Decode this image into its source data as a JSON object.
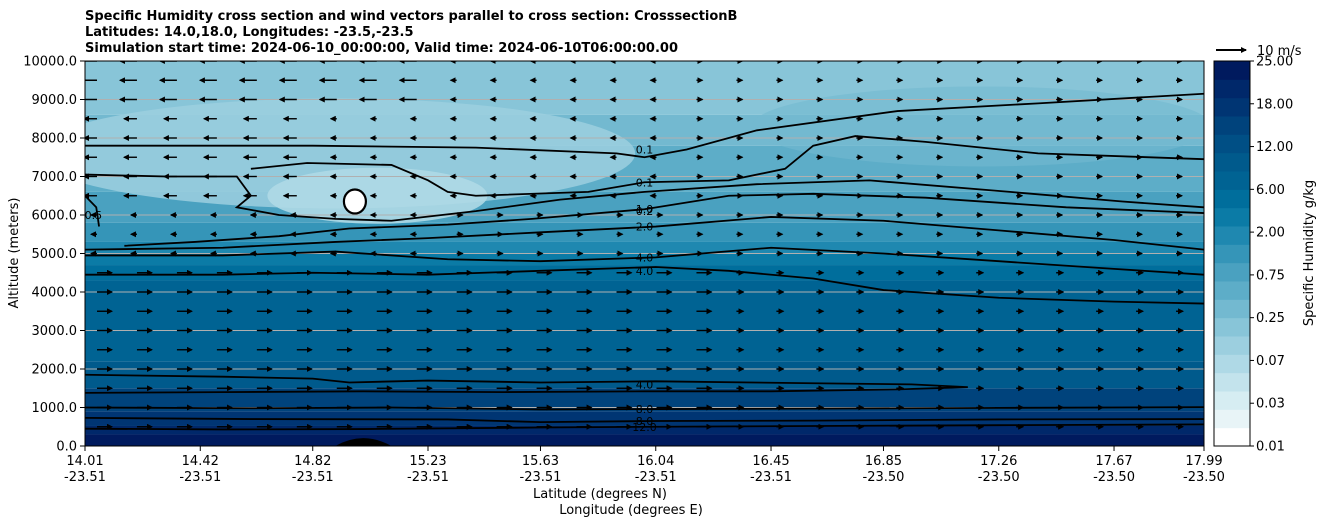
{
  "chart_data": {
    "type": "contour",
    "title_lines": [
      "Specific Humidity cross section and wind vectors parallel to cross section: CrosssectionB",
      "Latitudes: 14.0,18.0, Longitudes: -23.5,-23.5",
      "Simulation start time: 2024-06-10_00:00:00, Valid time: 2024-06-10T06:00:00.00"
    ],
    "ylabel": "Altitude (meters)",
    "xlabel_lines": [
      "Latitude (degrees N)",
      "Longitude (degrees E)"
    ],
    "ylim": [
      0,
      10000
    ],
    "y_ticks": [
      "0.0",
      "1000.0",
      "2000.0",
      "3000.0",
      "4000.0",
      "5000.0",
      "6000.0",
      "7000.0",
      "8000.0",
      "9000.0",
      "10000.0"
    ],
    "x_ticks": [
      {
        "lat": "14.01",
        "lon": "-23.51"
      },
      {
        "lat": "14.42",
        "lon": "-23.51"
      },
      {
        "lat": "14.82",
        "lon": "-23.51"
      },
      {
        "lat": "15.23",
        "lon": "-23.51"
      },
      {
        "lat": "15.63",
        "lon": "-23.51"
      },
      {
        "lat": "16.04",
        "lon": "-23.51"
      },
      {
        "lat": "16.45",
        "lon": "-23.51"
      },
      {
        "lat": "16.85",
        "lon": "-23.50"
      },
      {
        "lat": "17.26",
        "lon": "-23.50"
      },
      {
        "lat": "17.67",
        "lon": "-23.50"
      },
      {
        "lat": "17.99",
        "lon": "-23.50"
      }
    ],
    "colorbar": {
      "label": "Specific Humidity g/kg",
      "tick_labels": [
        "0.01",
        "0.03",
        "0.07",
        "0.25",
        "0.75",
        "2.00",
        "6.00",
        "12.00",
        "18.00",
        "25.00"
      ],
      "colors": [
        "#ffffff",
        "#e8f4f7",
        "#d6edf2",
        "#c3e3ec",
        "#afd9e6",
        "#9ccfdf",
        "#88c5d8",
        "#73b9d0",
        "#5dadc8",
        "#4aa1c0",
        "#3595b8",
        "#1f88b0",
        "#0b7ba6",
        "#006e9c",
        "#006393",
        "#005a8c",
        "#004f85",
        "#00437c",
        "#003573",
        "#00286a",
        "#001a5e"
      ]
    },
    "wind_reference": "10 m/s",
    "contour_lines": [
      {
        "label": "0.1",
        "points": [
          [
            14.01,
            7800
          ],
          [
            14.82,
            7800
          ],
          [
            15.4,
            7750
          ],
          [
            15.9,
            7600
          ],
          [
            16.0,
            7500
          ],
          [
            16.15,
            7700
          ],
          [
            16.4,
            8200
          ],
          [
            16.9,
            8700
          ],
          [
            17.4,
            8900
          ],
          [
            17.99,
            9150
          ]
        ]
      },
      {
        "label": "0.1",
        "points": [
          [
            14.6,
            7200
          ],
          [
            14.8,
            7350
          ],
          [
            15.1,
            7300
          ],
          [
            15.23,
            6900
          ],
          [
            15.3,
            6600
          ],
          [
            15.4,
            6500
          ],
          [
            15.8,
            6600
          ],
          [
            16.0,
            6850
          ],
          [
            16.3,
            6900
          ],
          [
            16.5,
            7200
          ],
          [
            16.6,
            7800
          ],
          [
            16.75,
            8050
          ],
          [
            17.0,
            7900
          ],
          [
            17.4,
            7600
          ],
          [
            17.99,
            7450
          ]
        ]
      },
      {
        "label": "0.2",
        "points": [
          [
            14.01,
            7050
          ],
          [
            14.3,
            7000
          ],
          [
            14.55,
            7000
          ],
          [
            14.6,
            6500
          ],
          [
            14.55,
            6200
          ],
          [
            14.7,
            6000
          ],
          [
            14.9,
            5900
          ],
          [
            15.1,
            5850
          ],
          [
            15.4,
            6100
          ],
          [
            15.7,
            6400
          ],
          [
            16.0,
            6600
          ],
          [
            16.4,
            6800
          ],
          [
            16.8,
            6900
          ],
          [
            17.3,
            6600
          ],
          [
            17.7,
            6350
          ],
          [
            17.99,
            6200
          ]
        ]
      },
      {
        "label": "0.5",
        "points": [
          [
            14.01,
            6500
          ],
          [
            14.05,
            6200
          ],
          [
            14.06,
            5700
          ]
        ]
      },
      {
        "label": "1.0",
        "points": [
          [
            14.15,
            5200
          ],
          [
            14.4,
            5300
          ],
          [
            14.7,
            5450
          ],
          [
            14.95,
            5650
          ],
          [
            15.3,
            5750
          ],
          [
            15.6,
            5900
          ],
          [
            16.0,
            6150
          ],
          [
            16.3,
            6500
          ],
          [
            16.6,
            6550
          ],
          [
            17.0,
            6450
          ],
          [
            17.5,
            6200
          ],
          [
            17.99,
            6050
          ]
        ]
      },
      {
        "label": "2.0",
        "points": [
          [
            14.01,
            5100
          ],
          [
            14.5,
            5150
          ],
          [
            14.9,
            5300
          ],
          [
            15.23,
            5400
          ],
          [
            15.63,
            5550
          ],
          [
            16.04,
            5700
          ],
          [
            16.45,
            5950
          ],
          [
            16.85,
            5850
          ],
          [
            17.26,
            5600
          ],
          [
            17.67,
            5350
          ],
          [
            17.99,
            5100
          ]
        ]
      },
      {
        "label": "4.0",
        "points": [
          [
            14.01,
            4950
          ],
          [
            14.5,
            4950
          ],
          [
            14.9,
            5050
          ],
          [
            15.3,
            4850
          ],
          [
            15.63,
            4800
          ],
          [
            16.04,
            4900
          ],
          [
            16.45,
            5150
          ],
          [
            16.85,
            5000
          ],
          [
            17.26,
            4800
          ],
          [
            17.67,
            4600
          ],
          [
            17.99,
            4450
          ]
        ]
      },
      {
        "label": "4.0",
        "points": [
          [
            14.01,
            4450
          ],
          [
            14.5,
            4450
          ],
          [
            14.82,
            4500
          ],
          [
            15.23,
            4450
          ],
          [
            15.63,
            4550
          ],
          [
            16.04,
            4650
          ],
          [
            16.3,
            4550
          ],
          [
            16.6,
            4350
          ],
          [
            16.85,
            4050
          ],
          [
            17.26,
            3850
          ],
          [
            17.67,
            3750
          ],
          [
            17.99,
            3700
          ]
        ]
      },
      {
        "label": "4.0",
        "points": [
          [
            14.01,
            1850
          ],
          [
            14.5,
            1800
          ],
          [
            14.82,
            1750
          ],
          [
            14.95,
            1650
          ],
          [
            15.23,
            1700
          ],
          [
            15.63,
            1650
          ],
          [
            16.04,
            1680
          ],
          [
            16.6,
            1630
          ],
          [
            16.95,
            1600
          ],
          [
            17.15,
            1530
          ],
          [
            16.9,
            1470
          ],
          [
            16.45,
            1420
          ],
          [
            16.0,
            1420
          ],
          [
            15.5,
            1400
          ],
          [
            15.0,
            1420
          ],
          [
            14.5,
            1400
          ],
          [
            14.01,
            1380
          ]
        ]
      },
      {
        "label": "8.0",
        "points": [
          [
            14.01,
            1000
          ],
          [
            14.6,
            980
          ],
          [
            15.1,
            1000
          ],
          [
            15.63,
            950
          ],
          [
            16.04,
            960
          ],
          [
            16.6,
            970
          ],
          [
            17.26,
            990
          ],
          [
            17.99,
            1010
          ]
        ]
      },
      {
        "label": "8.0",
        "points": [
          [
            14.01,
            730
          ],
          [
            14.6,
            700
          ],
          [
            15.3,
            690
          ],
          [
            15.63,
            620
          ],
          [
            16.04,
            650
          ],
          [
            16.6,
            660
          ],
          [
            17.26,
            690
          ],
          [
            17.99,
            700
          ]
        ]
      },
      {
        "label": "12.0",
        "points": [
          [
            14.01,
            450
          ],
          [
            14.5,
            430
          ],
          [
            15.0,
            440
          ],
          [
            15.63,
            480
          ],
          [
            16.04,
            500
          ],
          [
            16.6,
            520
          ],
          [
            17.26,
            540
          ],
          [
            17.99,
            560
          ]
        ]
      }
    ],
    "dry_pocket_center": [
      14.97,
      6350
    ],
    "terrain_peak": [
      15.0,
      200
    ]
  }
}
